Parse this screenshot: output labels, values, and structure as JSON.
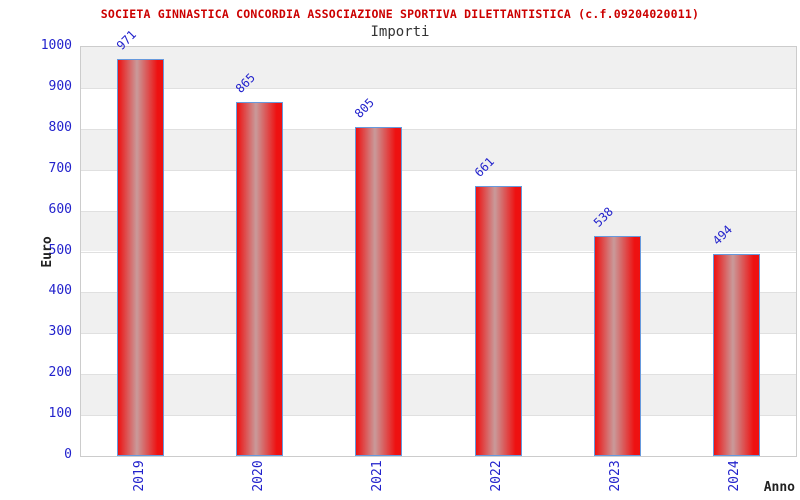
{
  "chart_data": {
    "type": "bar",
    "title": "SOCIETA GINNASTICA CONCORDIA ASSOCIAZIONE SPORTIVA DILETTANTISTICA (c.f.09204020011)",
    "subtitle": "Importi",
    "xlabel": "Anno",
    "ylabel": "Euro",
    "categories": [
      "2019",
      "2020",
      "2021",
      "2022",
      "2023",
      "2024"
    ],
    "values": [
      971,
      865,
      805,
      661,
      538,
      494
    ],
    "ylim": [
      0,
      1000
    ],
    "ytick_step": 100,
    "ytick_labels": [
      "0",
      "100",
      "200",
      "300",
      "400",
      "500",
      "600",
      "700",
      "800",
      "900",
      "1000"
    ],
    "grid": "horizontal-bands",
    "legend": "none",
    "colors": {
      "title_text": "#cc0000",
      "subtitle_text": "#333333",
      "tick_text": "#2222cc",
      "bar_value_text": "#2222cc",
      "axis_name_text": "#222222",
      "bar_red": "#ee1111",
      "bar_highlight": "#c99a9a",
      "bar_border": "#6699dd",
      "band_gray": "#f0f0f0",
      "band_white": "#ffffff",
      "plot_border": "#cccccc"
    }
  }
}
